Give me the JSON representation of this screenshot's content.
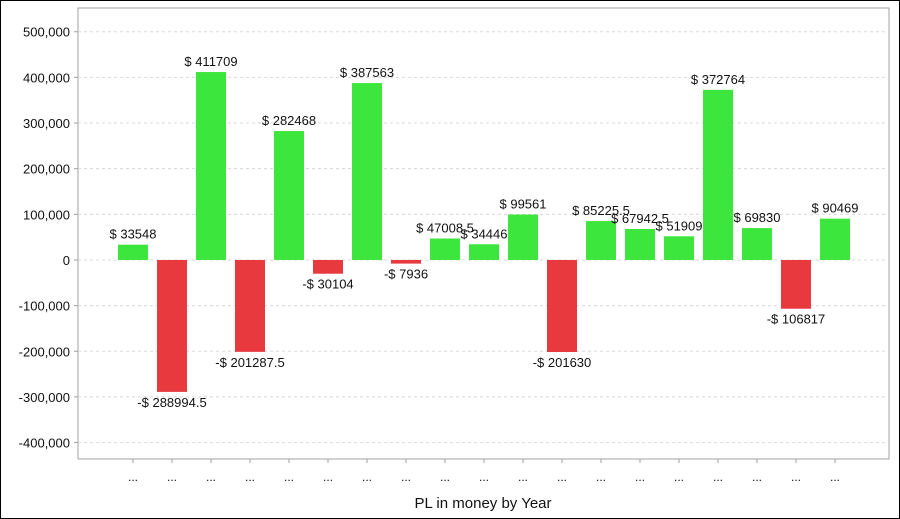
{
  "chart_data": {
    "type": "bar",
    "title": "",
    "xlabel": "PL in money by Year",
    "ylabel": "",
    "ylim": [
      -436000,
      552000
    ],
    "yticks": [
      500000,
      400000,
      300000,
      200000,
      100000,
      0,
      -100000,
      -200000,
      -300000,
      -400000
    ],
    "ytick_labels": [
      "500,000",
      "400,000",
      "300,000",
      "200,000",
      "100,000",
      "0",
      "-100,000",
      "-200,000",
      "-300,000",
      "-400,000"
    ],
    "grid": true,
    "categories": [
      "...",
      "...",
      "...",
      "...",
      "...",
      "...",
      "...",
      "...",
      "...",
      "...",
      "...",
      "...",
      "...",
      "...",
      "...",
      "...",
      "...",
      "...",
      "..."
    ],
    "values": [
      33548,
      -288994.5,
      411709,
      -201287.5,
      282468,
      -30104,
      387563,
      -7936,
      47008.5,
      34446,
      99561,
      -201630,
      85225.5,
      67942.5,
      51909,
      372764,
      69830,
      -106817,
      90469
    ],
    "data_labels": [
      "$ 33548",
      "-$ 288994.5",
      "$ 411709",
      "-$ 201287.5",
      "$ 282468",
      "-$ 30104",
      "$ 387563",
      "-$ 7936",
      "$ 47008.5",
      "$ 34446",
      "$ 99561",
      "-$ 201630",
      "$ 85225.5",
      "$ 67942.5",
      "$ 51909",
      "$ 372764",
      "$ 69830",
      "-$ 106817",
      "$ 90469"
    ],
    "colors": {
      "positive": "#3de63d",
      "negative": "#e8393f",
      "grid": "#d8d8d8",
      "axis": "#a0a0a0"
    }
  }
}
